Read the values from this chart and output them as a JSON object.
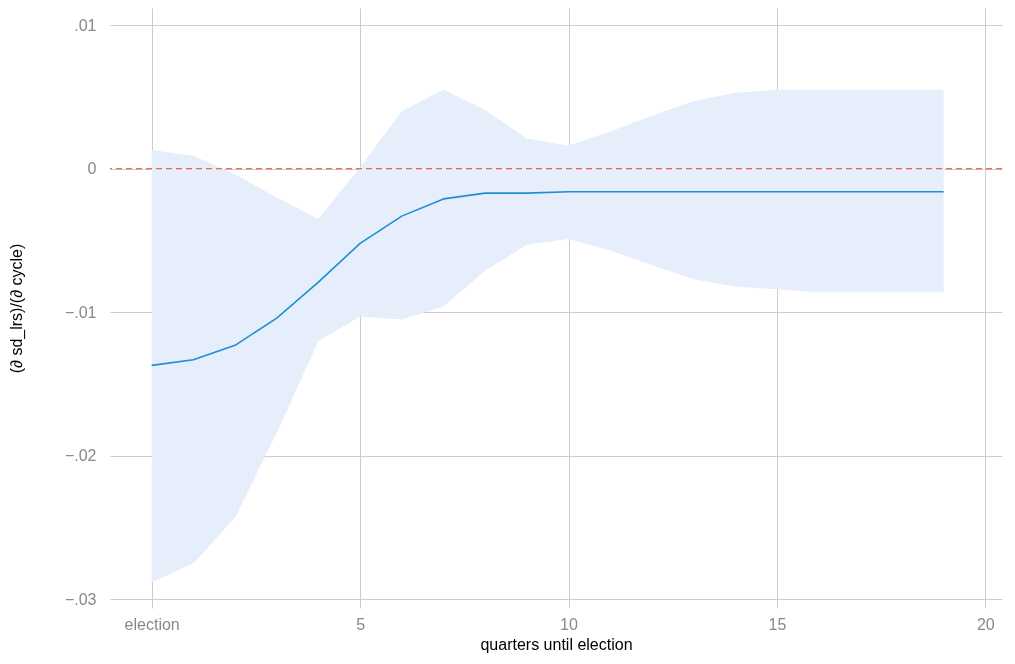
{
  "chart_data": {
    "type": "line",
    "xlabel": "quarters until election",
    "ylabel": "(∂ sd_lrs)/(∂ cycle)",
    "x": [
      0,
      1,
      2,
      3,
      4,
      5,
      6,
      7,
      8,
      9,
      10,
      11,
      12,
      13,
      14,
      15,
      16,
      17,
      18,
      19
    ],
    "series": [
      {
        "color": "#1a8fd6",
        "values": [
          -0.0137,
          -0.0133,
          -0.0123,
          -0.0104,
          -0.0079,
          -0.0052,
          -0.0033,
          -0.0021,
          -0.0017,
          -0.0017,
          -0.0016,
          -0.0016,
          -0.0016,
          -0.0016,
          -0.0016,
          -0.0016,
          -0.0016,
          -0.0016,
          -0.0016,
          -0.0016
        ],
        "lower": [
          -0.0288,
          -0.0275,
          -0.0243,
          -0.0184,
          -0.012,
          -0.0103,
          -0.0105,
          -0.0096,
          -0.0071,
          -0.0053,
          -0.0049,
          -0.0057,
          -0.0067,
          -0.0077,
          -0.0082,
          -0.0084,
          -0.0086,
          -0.0086,
          -0.0086,
          -0.0086
        ],
        "upper": [
          0.0013,
          0.0009,
          -0.0004,
          -0.002,
          -0.0035,
          0.0001,
          0.004,
          0.0055,
          0.0041,
          0.0021,
          0.0016,
          0.0026,
          0.0037,
          0.0047,
          0.0053,
          0.0055,
          0.0055,
          0.0055,
          0.0055,
          0.0055
        ]
      }
    ],
    "xlim": [
      -1,
      20.4
    ],
    "xticks": [
      {
        "value": 0,
        "label": "election"
      },
      5,
      10,
      15,
      20
    ],
    "ylim": [
      -0.0306,
      0.0112
    ],
    "yticks": [
      {
        "value": -0.03,
        "label": "−.03"
      },
      {
        "value": -0.02,
        "label": "−.02"
      },
      {
        "value": -0.01,
        "label": "−.01"
      },
      0,
      {
        "value": 0.01,
        "label": ".01"
      }
    ],
    "ref_lines": [
      {
        "axis": "y",
        "value": 0,
        "color": "#e8401c",
        "line_style": "dashed"
      }
    ],
    "grid": true
  }
}
